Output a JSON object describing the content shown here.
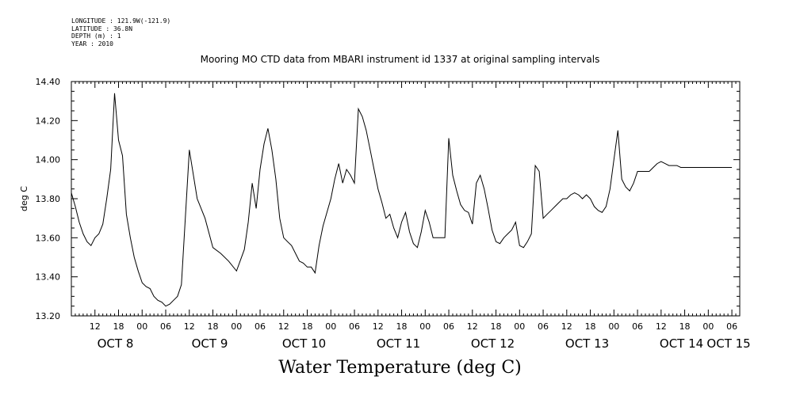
{
  "meta": {
    "longitude": "LONGITUDE : 121.9W(-121.9)",
    "latitude": "LATITUDE : 36.8N",
    "depth": "DEPTH (m) : 1",
    "year": "YEAR : 2010"
  },
  "chart_data": {
    "type": "line",
    "title": "Mooring MO CTD data from MBARI instrument id 1337 at original sampling intervals",
    "xlabel": "Water Temperature (deg C)",
    "ylabel": "deg C",
    "ylim": [
      13.2,
      14.4
    ],
    "yticks": [
      "13.20",
      "13.40",
      "13.60",
      "13.80",
      "14.00",
      "14.20",
      "14.40"
    ],
    "xlim_hours": [
      0,
      170
    ],
    "x_units": "hours since Oct 8 2010 06:00",
    "hour_tick_labels": [
      "12",
      "18",
      "00",
      "06",
      "12",
      "18",
      "00",
      "06",
      "12",
      "18",
      "00",
      "06",
      "12",
      "18",
      "00",
      "06",
      "12",
      "18",
      "00",
      "06",
      "12",
      "18",
      "00",
      "06",
      "12",
      "18",
      "00",
      "06"
    ],
    "day_labels": [
      "OCT  8",
      "OCT  9",
      "OCT 10",
      "OCT 11",
      "OCT 12",
      "OCT 13",
      "OCT 14",
      "OCT 15"
    ],
    "grid": false,
    "series": [
      {
        "color": "#000000",
        "x": [
          0,
          1,
          2,
          3,
          4,
          5,
          6,
          7,
          8,
          9,
          10,
          11,
          12,
          13,
          14,
          15,
          16,
          17,
          18,
          19,
          20,
          21,
          22,
          23,
          24,
          25,
          26,
          27,
          28,
          30,
          32,
          34,
          36,
          38,
          40,
          42,
          44,
          45,
          46,
          47,
          48,
          49,
          50,
          51,
          52,
          53,
          54,
          55,
          56,
          57,
          58,
          59,
          60,
          61,
          62,
          63,
          64,
          66,
          67,
          68,
          69,
          70,
          71,
          72,
          73,
          74,
          75,
          76,
          77,
          78,
          79,
          80,
          81,
          82,
          83,
          84,
          85,
          86,
          87,
          88,
          89,
          90,
          91,
          92,
          93,
          94,
          95,
          96,
          97,
          98,
          99,
          100,
          101,
          102,
          103,
          104,
          105,
          106,
          107,
          108,
          109,
          110,
          111,
          112,
          113,
          114,
          115,
          116,
          117,
          118,
          119,
          120,
          121,
          122,
          123,
          124,
          125,
          126,
          127,
          128,
          129,
          130,
          131,
          132,
          133,
          134,
          135,
          136,
          137,
          138,
          139,
          140,
          141,
          142,
          143,
          144,
          145,
          146,
          147,
          148,
          149,
          150,
          151,
          152,
          153,
          154,
          155,
          156,
          157,
          158,
          159,
          160,
          161,
          162,
          163,
          164,
          165,
          166,
          167,
          168
        ],
        "y": [
          13.83,
          13.76,
          13.68,
          13.62,
          13.58,
          13.56,
          13.6,
          13.62,
          13.67,
          13.8,
          13.95,
          14.34,
          14.1,
          14.02,
          13.72,
          13.6,
          13.5,
          13.43,
          13.37,
          13.35,
          13.34,
          13.3,
          13.28,
          13.27,
          13.25,
          13.26,
          13.28,
          13.3,
          13.36,
          14.05,
          13.8,
          13.7,
          13.55,
          13.52,
          13.48,
          13.43,
          13.54,
          13.68,
          13.88,
          13.75,
          13.95,
          14.08,
          14.16,
          14.05,
          13.9,
          13.7,
          13.6,
          13.58,
          13.56,
          13.52,
          13.48,
          13.47,
          13.45,
          13.45,
          13.42,
          13.56,
          13.66,
          13.8,
          13.9,
          13.98,
          13.88,
          13.95,
          13.92,
          13.88,
          14.26,
          14.22,
          14.15,
          14.05,
          13.95,
          13.85,
          13.78,
          13.7,
          13.72,
          13.65,
          13.6,
          13.68,
          13.73,
          13.63,
          13.57,
          13.55,
          13.63,
          13.74,
          13.68,
          13.6,
          13.6,
          13.6,
          13.6,
          14.11,
          13.92,
          13.84,
          13.77,
          13.74,
          13.73,
          13.67,
          13.88,
          13.92,
          13.85,
          13.75,
          13.64,
          13.58,
          13.57,
          13.6,
          13.62,
          13.64,
          13.68,
          13.56,
          13.55,
          13.58,
          13.62,
          13.97,
          13.94,
          13.7,
          13.72,
          13.74,
          13.76,
          13.78,
          13.8,
          13.8,
          13.82,
          13.83,
          13.82,
          13.8,
          13.82,
          13.8,
          13.76,
          13.74,
          13.73,
          13.76,
          13.85,
          14.0,
          14.15,
          13.9,
          13.86,
          13.84,
          13.88,
          13.94,
          13.94,
          13.94,
          13.94,
          13.96,
          13.98,
          13.99,
          13.98,
          13.97,
          13.97,
          13.97,
          13.96,
          13.96,
          13.96,
          13.96,
          13.96,
          13.96,
          13.96,
          13.96,
          13.96,
          13.96,
          13.96,
          13.96,
          13.96,
          13.96
        ]
      }
    ]
  }
}
